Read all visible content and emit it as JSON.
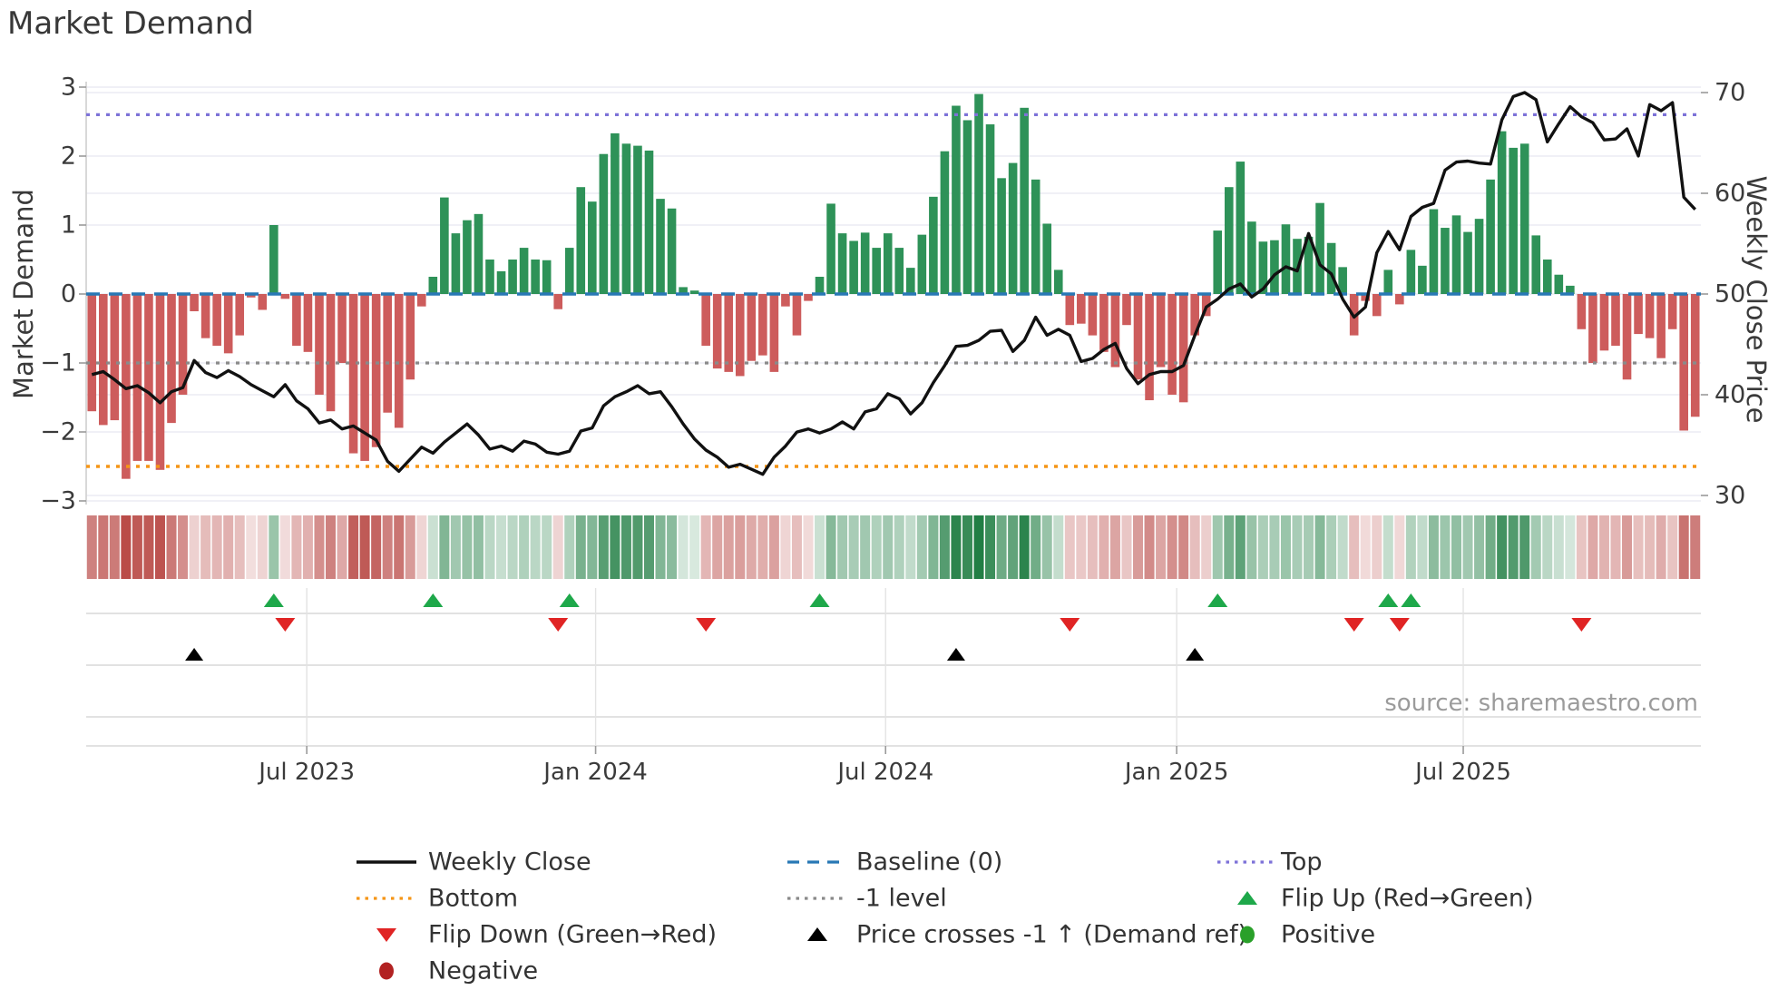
{
  "title": "Market Demand",
  "source": "source: sharemaestro.com",
  "axes": {
    "left_label": "Market Demand",
    "right_label": "Weekly Close Price",
    "left_ticks": [
      "3",
      "2",
      "1",
      "0",
      "−1",
      "−2",
      "−3"
    ],
    "right_ticks": [
      "70",
      "60",
      "50",
      "40",
      "30"
    ],
    "x_ticks": [
      "Jul 2023",
      "Jan 2024",
      "Jul 2024",
      "Jan 2025",
      "Jul 2025"
    ]
  },
  "chart_data": {
    "type": "mixed",
    "x_unit": "week",
    "title": "Market Demand",
    "ylabel_left": "Market Demand",
    "ylabel_right": "Weekly Close Price",
    "ylim_left": [
      -3,
      3
    ],
    "ylim_right": [
      30,
      70
    ],
    "grid": true,
    "legend_position": "bottom",
    "ref_lines": {
      "baseline": 0,
      "top": 2.6,
      "bottom": -2.5,
      "minus1": -1
    },
    "x_tick_positions": [
      {
        "label": "Jul 2023",
        "week": 18.9
      },
      {
        "label": "Jan 2024",
        "week": 44.3
      },
      {
        "label": "Jul 2024",
        "week": 69.8
      },
      {
        "label": "Jan 2025",
        "week": 95.4
      },
      {
        "label": "Jul 2025",
        "week": 120.6
      }
    ],
    "series": [
      {
        "name": "Market Demand",
        "type": "bar",
        "axis": "left",
        "values": [
          -1.7,
          -1.9,
          -1.83,
          -2.68,
          -2.42,
          -2.42,
          -2.55,
          -1.87,
          -1.46,
          -0.25,
          -0.64,
          -0.75,
          -0.86,
          -0.6,
          -0.05,
          -0.23,
          1.0,
          -0.07,
          -0.75,
          -0.84,
          -1.46,
          -1.7,
          -1.0,
          -2.31,
          -2.42,
          -2.22,
          -1.72,
          -1.94,
          -1.24,
          -0.18,
          0.25,
          1.4,
          0.88,
          1.07,
          1.16,
          0.5,
          0.33,
          0.5,
          0.67,
          0.5,
          0.49,
          -0.22,
          0.67,
          1.55,
          1.34,
          2.03,
          2.33,
          2.18,
          2.15,
          2.08,
          1.38,
          1.24,
          0.1,
          0.05,
          -0.75,
          -1.08,
          -1.13,
          -1.19,
          -0.97,
          -0.89,
          -1.13,
          -0.18,
          -0.6,
          -0.1,
          0.25,
          1.31,
          0.88,
          0.77,
          0.89,
          0.67,
          0.88,
          0.67,
          0.38,
          0.86,
          1.41,
          2.07,
          2.73,
          2.52,
          2.9,
          2.46,
          1.68,
          1.9,
          2.7,
          1.66,
          1.02,
          0.35,
          -0.45,
          -0.43,
          -0.6,
          -0.84,
          -1.06,
          -0.45,
          -1.24,
          -1.54,
          -1.06,
          -1.46,
          -1.57,
          -0.6,
          -0.32,
          0.92,
          1.55,
          1.92,
          1.05,
          0.76,
          0.78,
          1.01,
          0.8,
          0.83,
          1.32,
          0.74,
          0.39,
          -0.6,
          -0.1,
          -0.32,
          0.35,
          -0.15,
          0.64,
          0.41,
          1.23,
          0.96,
          1.14,
          0.9,
          1.09,
          1.66,
          2.36,
          2.12,
          2.18,
          0.85,
          0.5,
          0.28,
          0.12,
          -0.51,
          -1.0,
          -0.82,
          -0.75,
          -1.24,
          -0.58,
          -0.64,
          -0.93,
          -0.51,
          -1.98,
          -1.78
        ]
      },
      {
        "name": "Weekly Close",
        "type": "line",
        "axis": "right",
        "values": [
          42.0,
          42.3,
          41.5,
          40.6,
          40.9,
          40.2,
          39.2,
          40.3,
          40.7,
          43.4,
          42.2,
          41.7,
          42.4,
          41.8,
          41.0,
          40.4,
          39.8,
          41.0,
          39.4,
          38.6,
          37.2,
          37.5,
          36.6,
          36.9,
          36.2,
          35.5,
          33.4,
          32.4,
          33.6,
          34.8,
          34.2,
          35.3,
          36.2,
          37.1,
          36.0,
          34.6,
          34.9,
          34.4,
          35.4,
          35.1,
          34.3,
          34.1,
          34.4,
          36.4,
          36.7,
          38.9,
          39.8,
          40.3,
          40.9,
          40.1,
          40.3,
          38.8,
          37.1,
          35.6,
          34.5,
          33.8,
          32.8,
          33.1,
          32.6,
          32.1,
          33.8,
          34.9,
          36.3,
          36.6,
          36.2,
          36.6,
          37.3,
          36.6,
          38.3,
          38.6,
          40.1,
          39.6,
          38.1,
          39.2,
          41.2,
          42.9,
          44.8,
          44.9,
          45.4,
          46.3,
          46.4,
          44.3,
          45.4,
          47.7,
          45.9,
          46.5,
          45.9,
          43.3,
          43.6,
          44.5,
          45.1,
          42.6,
          41.1,
          42.0,
          42.3,
          42.3,
          42.9,
          45.9,
          48.7,
          49.5,
          50.5,
          51.0,
          49.7,
          50.5,
          51.9,
          52.7,
          52.3,
          56.0,
          52.9,
          52.0,
          49.5,
          47.7,
          48.7,
          54.1,
          56.2,
          54.4,
          57.7,
          58.6,
          59.0,
          62.3,
          63.1,
          63.2,
          63.0,
          62.9,
          67.3,
          69.6,
          70.0,
          69.3,
          65.1,
          66.9,
          68.6,
          67.6,
          67.0,
          65.3,
          65.4,
          66.4,
          63.7,
          68.8,
          68.2,
          69.0,
          59.6,
          58.4
        ]
      }
    ],
    "markers": {
      "flip_up_weeks": [
        16,
        30,
        42,
        64,
        99,
        114,
        116
      ],
      "flip_down_weeks": [
        17,
        41,
        54,
        86,
        111,
        115,
        131
      ],
      "price_cross_weeks": [
        9,
        76,
        97
      ]
    }
  },
  "legend": {
    "items": [
      {
        "swatch": "line",
        "color": "#111111",
        "label": "Weekly Close",
        "col": 0,
        "row": 0
      },
      {
        "swatch": "dotted",
        "color": "#f59516",
        "label": "Bottom",
        "col": 0,
        "row": 1
      },
      {
        "swatch": "tri_down",
        "color": "#e02424",
        "label": "Flip Down (Green→Red)",
        "col": 0,
        "row": 2
      },
      {
        "swatch": "circle",
        "color": "#b22222",
        "label": "Negative",
        "col": 0,
        "row": 3
      },
      {
        "swatch": "dashed",
        "color": "#2878b5",
        "label": "Baseline (0)",
        "col": 1,
        "row": 0
      },
      {
        "swatch": "dotted",
        "color": "#8a8a8a",
        "label": "-1 level",
        "col": 1,
        "row": 1
      },
      {
        "swatch": "tri_up",
        "color": "#000000",
        "label": "Price crosses -1 ↑ (Demand ref)",
        "col": 1,
        "row": 2
      },
      {
        "swatch": "dotted",
        "color": "#7d72d8",
        "label": "Top",
        "col": 2,
        "row": 0
      },
      {
        "swatch": "tri_up",
        "color": "#1ea84a",
        "label": "Flip Up (Red→Green)",
        "col": 2,
        "row": 1
      },
      {
        "swatch": "circle",
        "color": "#2aa02a",
        "label": "Positive",
        "col": 2,
        "row": 2
      }
    ]
  },
  "colors": {
    "bar_positive": "#2e9258",
    "bar_negative": "#cd5c5c",
    "price_line": "#111111",
    "baseline": "#2878b5",
    "top_line": "#7d72d8",
    "bottom_line": "#f59516",
    "minus1_line": "#8a8a8a",
    "flip_up": "#1ea84a",
    "flip_down": "#e02424",
    "price_cross": "#000000",
    "heat_positive": "#1a7a3e",
    "heat_negative": "#b33a36",
    "grid": "#ebebf3",
    "spine": "#cfcfcf"
  }
}
